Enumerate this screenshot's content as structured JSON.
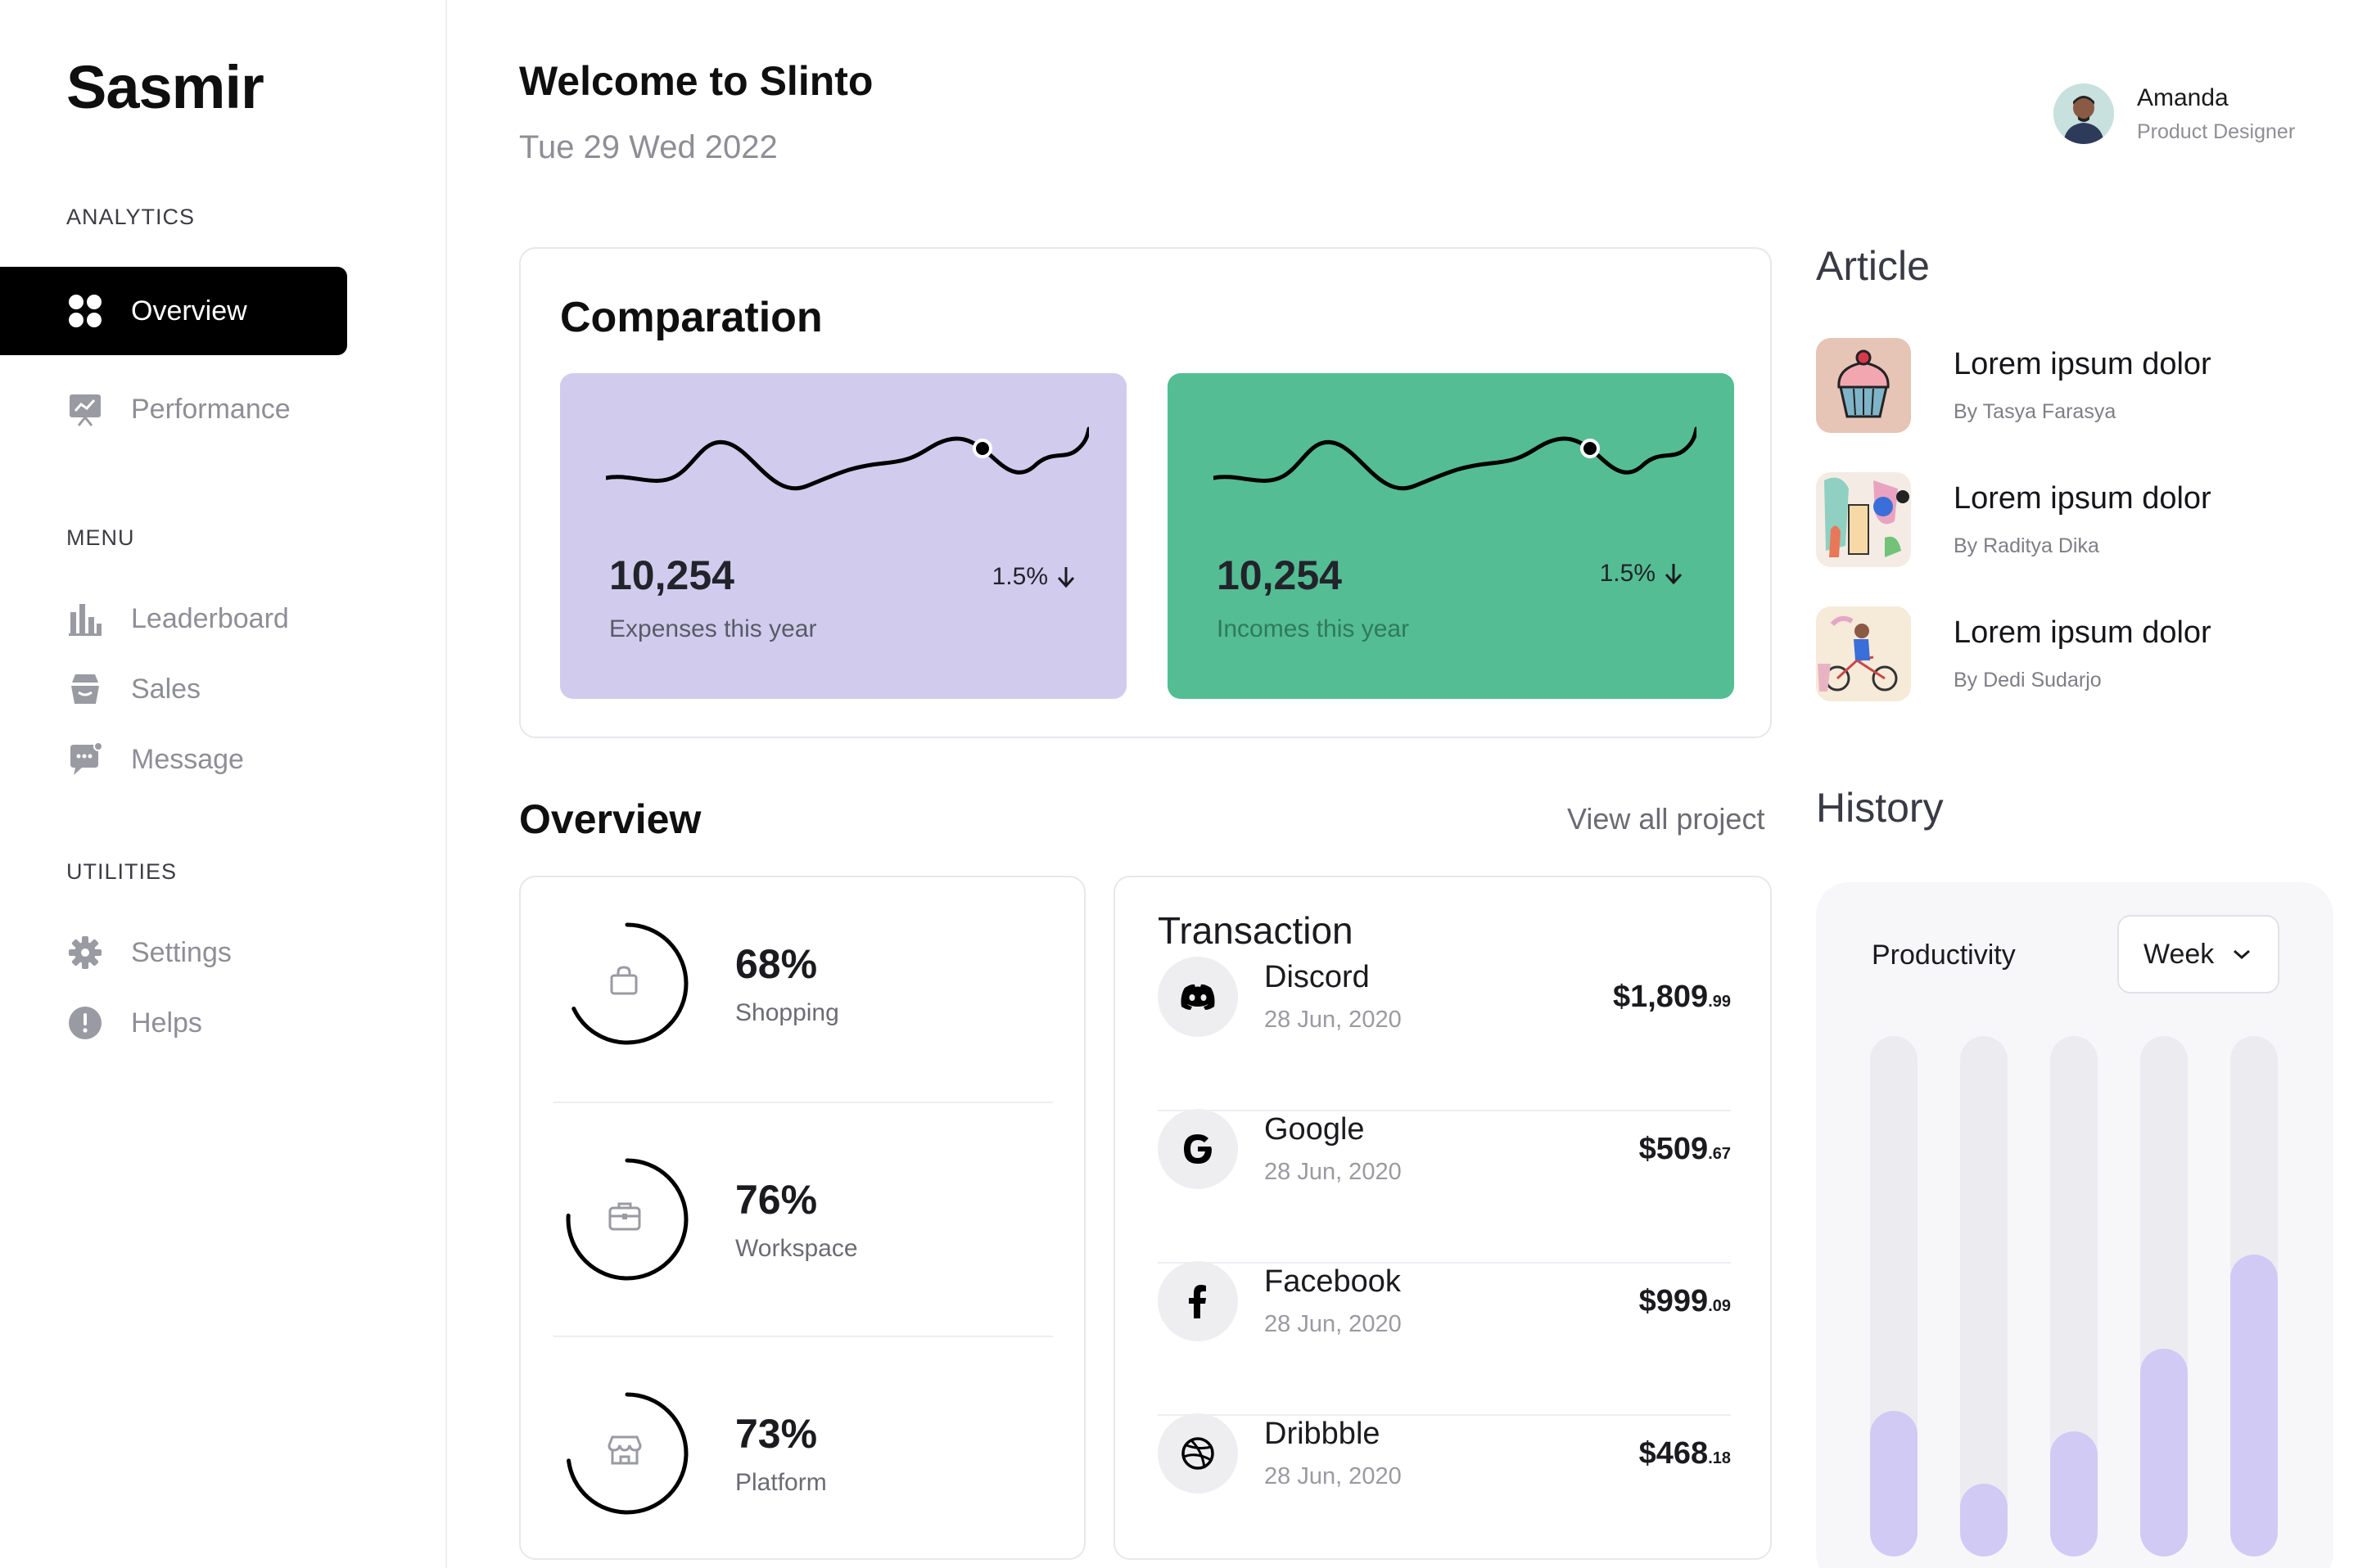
{
  "sidebar": {
    "brand": "Sasmir",
    "sections": {
      "analytics": "ANALYTICS",
      "menu": "MENU",
      "utilities": "UTILITIES"
    },
    "items": {
      "overview": "Overview",
      "performance": "Performance",
      "leaderboard": "Leaderboard",
      "sales": "Sales",
      "message": "Message",
      "settings": "Settings",
      "helps": "Helps"
    }
  },
  "header": {
    "title": "Welcome to Slinto",
    "date": "Tue 29 Wed 2022",
    "user": {
      "name": "Amanda",
      "role": "Product Designer"
    }
  },
  "comparation": {
    "title": "Comparation",
    "expenses": {
      "value": "10,254",
      "label": "Expenses this year",
      "change": "1.5%",
      "color": "#d1ccee"
    },
    "incomes": {
      "value": "10,254",
      "label": "Incomes this year",
      "change": "1.5%",
      "color": "#54bd93"
    }
  },
  "overview": {
    "title": "Overview",
    "view_all": "View all project",
    "stats": [
      {
        "percent": "68%",
        "label": "Shopping",
        "value": 0.68,
        "icon": "shopping-bag-icon"
      },
      {
        "percent": "76%",
        "label": "Workspace",
        "value": 0.76,
        "icon": "briefcase-icon"
      },
      {
        "percent": "73%",
        "label": "Platform",
        "value": 0.73,
        "icon": "store-icon"
      }
    ]
  },
  "transactions": {
    "title": "Transaction",
    "items": [
      {
        "name": "Discord",
        "date": "28 Jun, 2020",
        "amount": "$1,809",
        "cents": ".99",
        "icon": "discord-icon"
      },
      {
        "name": "Google",
        "date": "28 Jun, 2020",
        "amount": "$509",
        "cents": ".67",
        "icon": "google-icon"
      },
      {
        "name": "Facebook",
        "date": "28 Jun, 2020",
        "amount": "$999",
        "cents": ".09",
        "icon": "facebook-icon"
      },
      {
        "name": "Dribbble",
        "date": "28 Jun, 2020",
        "amount": "$468",
        "cents": ".18",
        "icon": "dribbble-icon"
      }
    ]
  },
  "articles": {
    "title": "Article",
    "items": [
      {
        "title": "Lorem ipsum dolor",
        "author": "By Tasya Farasya"
      },
      {
        "title": "Lorem ipsum dolor",
        "author": "By Raditya Dika"
      },
      {
        "title": "Lorem ipsum dolor",
        "author": "By Dedi Sudarjo"
      }
    ]
  },
  "history": {
    "title": "History",
    "chart_label": "Productivity",
    "period": "Week",
    "bars": [
      0.28,
      0.14,
      0.24,
      0.4,
      0.58
    ],
    "bar_color": "#d1caf5"
  }
}
